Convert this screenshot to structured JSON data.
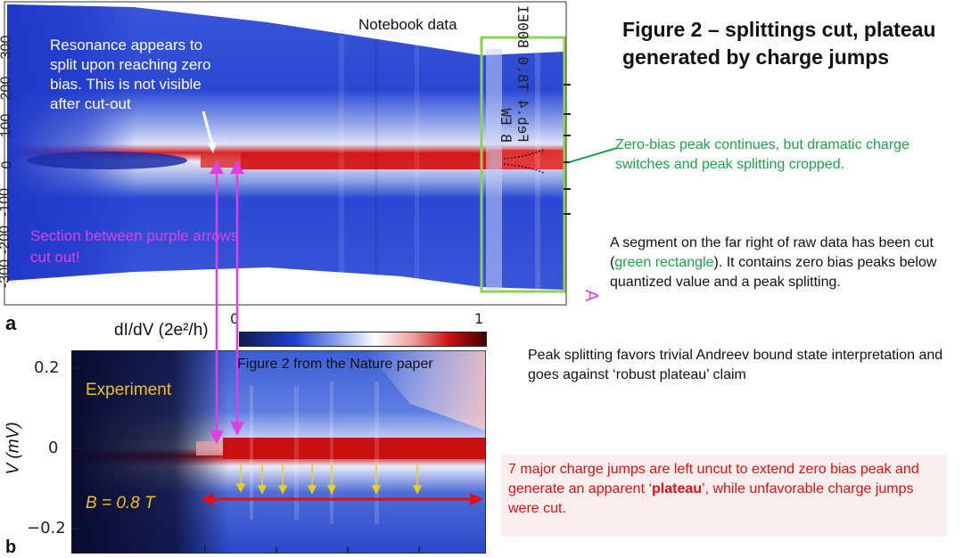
{
  "notebook": {
    "label": "Notebook data",
    "annotation": "Resonance appears to split upon reaching zero bias. This is not visible after cut-out",
    "cut_note": "Section between purple arrows cut out!",
    "panel_letter": "a",
    "y_ticks": [
      "300",
      "200",
      "100",
      "0",
      "-100",
      "-200",
      "-300"
    ],
    "side_label": "Feb.4 T8.0 B00EI SS B EW",
    "side_letter": "A"
  },
  "colorbar": {
    "label": "dI/dV (2e²/h)",
    "tick_0": "0",
    "tick_1": "1"
  },
  "nature": {
    "caption": "Figure 2 from the Nature paper",
    "experiment": "Experiment",
    "field": "B = 0.8 T",
    "ylabel": "V (mV)",
    "y_ticks": [
      "0.2",
      "0",
      "−0.2"
    ],
    "panel_letter": "b"
  },
  "right": {
    "title": "Figure 2 – splittings cut, plateau generated by charge jumps",
    "green_note": "Zero-bias peak continues, but dramatic charge switches and peak splitting cropped.",
    "segment_before": "A segment on the far right of raw data has been cut (",
    "segment_green": "green rectangle",
    "segment_after": "). It contains zero bias peaks below quantized value and a peak splitting.",
    "splitting_note": "Peak splitting favors trivial Andreev bound state interpretation and goes against ‘robust plateau’ claim",
    "red_before": "7 major charge jumps are left uncut to extend zero bias peak and generate an apparent ‘",
    "red_bold": "plateau",
    "red_after": "’, while unfavorable charge jumps were cut."
  },
  "colors": {
    "map_blue": "#1e3fd0",
    "map_red": "#d01010",
    "green_box": "#8fd14f",
    "purple": "#e040e0",
    "red_arrow": "#e01010",
    "yellow_arrow": "#f0d000"
  }
}
